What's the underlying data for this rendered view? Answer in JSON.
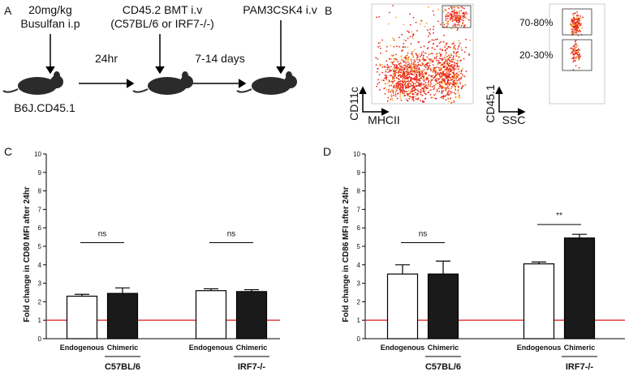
{
  "panel_a": {
    "letter": "A",
    "step1_dose": "20mg/kg",
    "step1_drug": "Busulfan i.p",
    "interval1": "24hr",
    "step2_title": "CD45.2 BMT i.v",
    "step2_donors": "(C57BL/6 or IRF7-/-)",
    "interval2": "7-14 days",
    "step3": "PAM3CSK4 i.v",
    "strain": "B6J.CD45.1"
  },
  "panel_b": {
    "letter": "B",
    "plot1_y": "CD11c",
    "plot1_x": "MHCII",
    "plot2_y": "CD45.1",
    "plot2_x": "SSC",
    "gate_high": "70-80%",
    "gate_low": "20-30%"
  },
  "chart_data": [
    {
      "type": "bar",
      "letter": "C",
      "ylabel": "Fold change in CD80 MFI after 24hr",
      "categories": [
        "C57BL/6",
        "IRF7-/-"
      ],
      "series": [
        {
          "name": "Endogenous",
          "color": "#ffffff",
          "values": [
            2.3,
            2.6
          ],
          "errors": [
            0.1,
            0.1
          ]
        },
        {
          "name": "Chimeric",
          "color": "#1a1a1a",
          "values": [
            2.45,
            2.55
          ],
          "errors": [
            0.3,
            0.1
          ]
        }
      ],
      "significance": [
        "ns",
        "ns"
      ],
      "reference_line": 1,
      "reference_color": "#e03030",
      "ylim": [
        0,
        10
      ],
      "yticks": [
        0,
        1,
        2,
        3,
        4,
        5,
        6,
        7,
        8,
        9,
        10
      ]
    },
    {
      "type": "bar",
      "letter": "D",
      "ylabel": "Fold change in CD86 MFI after 24hr",
      "categories": [
        "C57BL/6",
        "IRF7-/-"
      ],
      "series": [
        {
          "name": "Endogenous",
          "color": "#ffffff",
          "values": [
            3.5,
            4.05
          ],
          "errors": [
            0.5,
            0.1
          ]
        },
        {
          "name": "Chimeric",
          "color": "#1a1a1a",
          "values": [
            3.5,
            5.45
          ],
          "errors": [
            0.7,
            0.2
          ]
        }
      ],
      "significance": [
        "ns",
        "**"
      ],
      "reference_line": 1,
      "reference_color": "#e03030",
      "ylim": [
        0,
        10
      ],
      "yticks": [
        0,
        1,
        2,
        3,
        4,
        5,
        6,
        7,
        8,
        9,
        10
      ]
    }
  ]
}
